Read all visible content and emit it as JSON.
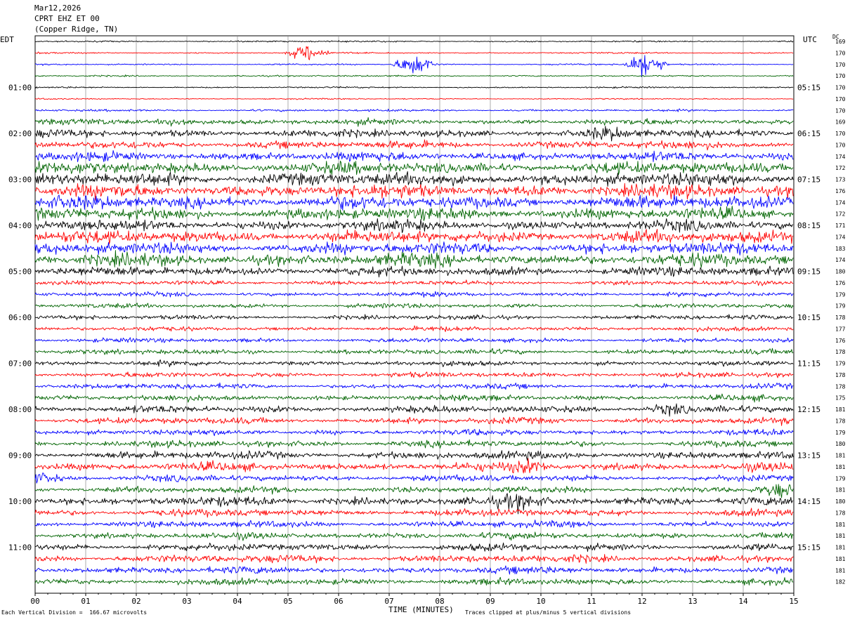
{
  "header": {
    "date": "Mar12,2026",
    "station": "CPRT EHZ ET 00",
    "location": "(Copper Ridge, TN)"
  },
  "left_zone": "EDT",
  "right_zone": "UTC",
  "dc_header": "DC",
  "footer": {
    "scale": "Each Vertical Division =  166.67 microvolts",
    "xlabel": "TIME (MINUTES)",
    "clip": "Traces clipped at plus/minus 5 vertical divisions"
  },
  "chart_data": {
    "type": "line",
    "title": "CPRT EHZ ET 00 (Copper Ridge, TN) Mar12,2026",
    "xlabel": "TIME (MINUTES)",
    "xlim": [
      0,
      15
    ],
    "x_ticks": [
      "00",
      "01",
      "02",
      "03",
      "04",
      "05",
      "06",
      "07",
      "08",
      "09",
      "10",
      "11",
      "12",
      "13",
      "14",
      "15"
    ],
    "left_time_labels": [
      {
        "row": 4,
        "label": "01:00"
      },
      {
        "row": 8,
        "label": "02:00"
      },
      {
        "row": 12,
        "label": "03:00"
      },
      {
        "row": 16,
        "label": "04:00"
      },
      {
        "row": 20,
        "label": "05:00"
      },
      {
        "row": 24,
        "label": "06:00"
      },
      {
        "row": 28,
        "label": "07:00"
      },
      {
        "row": 32,
        "label": "08:00"
      },
      {
        "row": 36,
        "label": "09:00"
      },
      {
        "row": 40,
        "label": "10:00"
      },
      {
        "row": 44,
        "label": "11:00"
      }
    ],
    "right_time_labels": [
      {
        "row": 4,
        "label": "05:15"
      },
      {
        "row": 8,
        "label": "06:15"
      },
      {
        "row": 12,
        "label": "07:15"
      },
      {
        "row": 16,
        "label": "08:15"
      },
      {
        "row": 20,
        "label": "09:15"
      },
      {
        "row": 24,
        "label": "10:15"
      },
      {
        "row": 28,
        "label": "11:15"
      },
      {
        "row": 32,
        "label": "12:15"
      },
      {
        "row": 36,
        "label": "13:15"
      },
      {
        "row": 40,
        "label": "14:15"
      },
      {
        "row": 44,
        "label": "15:15"
      }
    ],
    "trace_colors": [
      "#000000",
      "#ff0000",
      "#0000ff",
      "#006400"
    ],
    "dc_offsets": [
      169,
      170,
      170,
      170,
      170,
      170,
      170,
      169,
      170,
      170,
      174,
      172,
      173,
      176,
      174,
      172,
      171,
      174,
      183,
      174,
      180,
      176,
      179,
      179,
      178,
      177,
      176,
      178,
      179,
      178,
      178,
      175,
      181,
      178,
      179,
      180,
      181,
      181,
      179,
      181,
      180,
      178,
      181,
      181,
      181,
      181,
      181,
      182
    ],
    "noise_level": [
      0.12,
      0.12,
      0.12,
      0.12,
      0.12,
      0.1,
      0.18,
      0.45,
      0.6,
      0.6,
      0.7,
      0.9,
      1.0,
      1.0,
      1.0,
      0.9,
      0.8,
      0.95,
      0.9,
      0.95,
      0.7,
      0.35,
      0.35,
      0.35,
      0.35,
      0.35,
      0.35,
      0.4,
      0.4,
      0.4,
      0.4,
      0.45,
      0.55,
      0.5,
      0.45,
      0.5,
      0.6,
      0.65,
      0.5,
      0.5,
      0.7,
      0.55,
      0.5,
      0.5,
      0.55,
      0.6,
      0.55,
      0.5
    ],
    "events": [
      {
        "row": 1,
        "minute": 5.4,
        "amp": 6
      },
      {
        "row": 2,
        "minute": 7.5,
        "amp": 8
      },
      {
        "row": 2,
        "minute": 12.05,
        "amp": 10
      },
      {
        "row": 7,
        "minute": 2.8,
        "amp": 3
      },
      {
        "row": 8,
        "minute": 11.3,
        "amp": 3
      },
      {
        "row": 32,
        "minute": 12.5,
        "amp": 3
      },
      {
        "row": 37,
        "minute": 9.8,
        "amp": 3
      },
      {
        "row": 38,
        "minute": 0.1,
        "amp": 3
      },
      {
        "row": 39,
        "minute": 14.7,
        "amp": 4
      },
      {
        "row": 40,
        "minute": 9.6,
        "amp": 3
      }
    ]
  }
}
